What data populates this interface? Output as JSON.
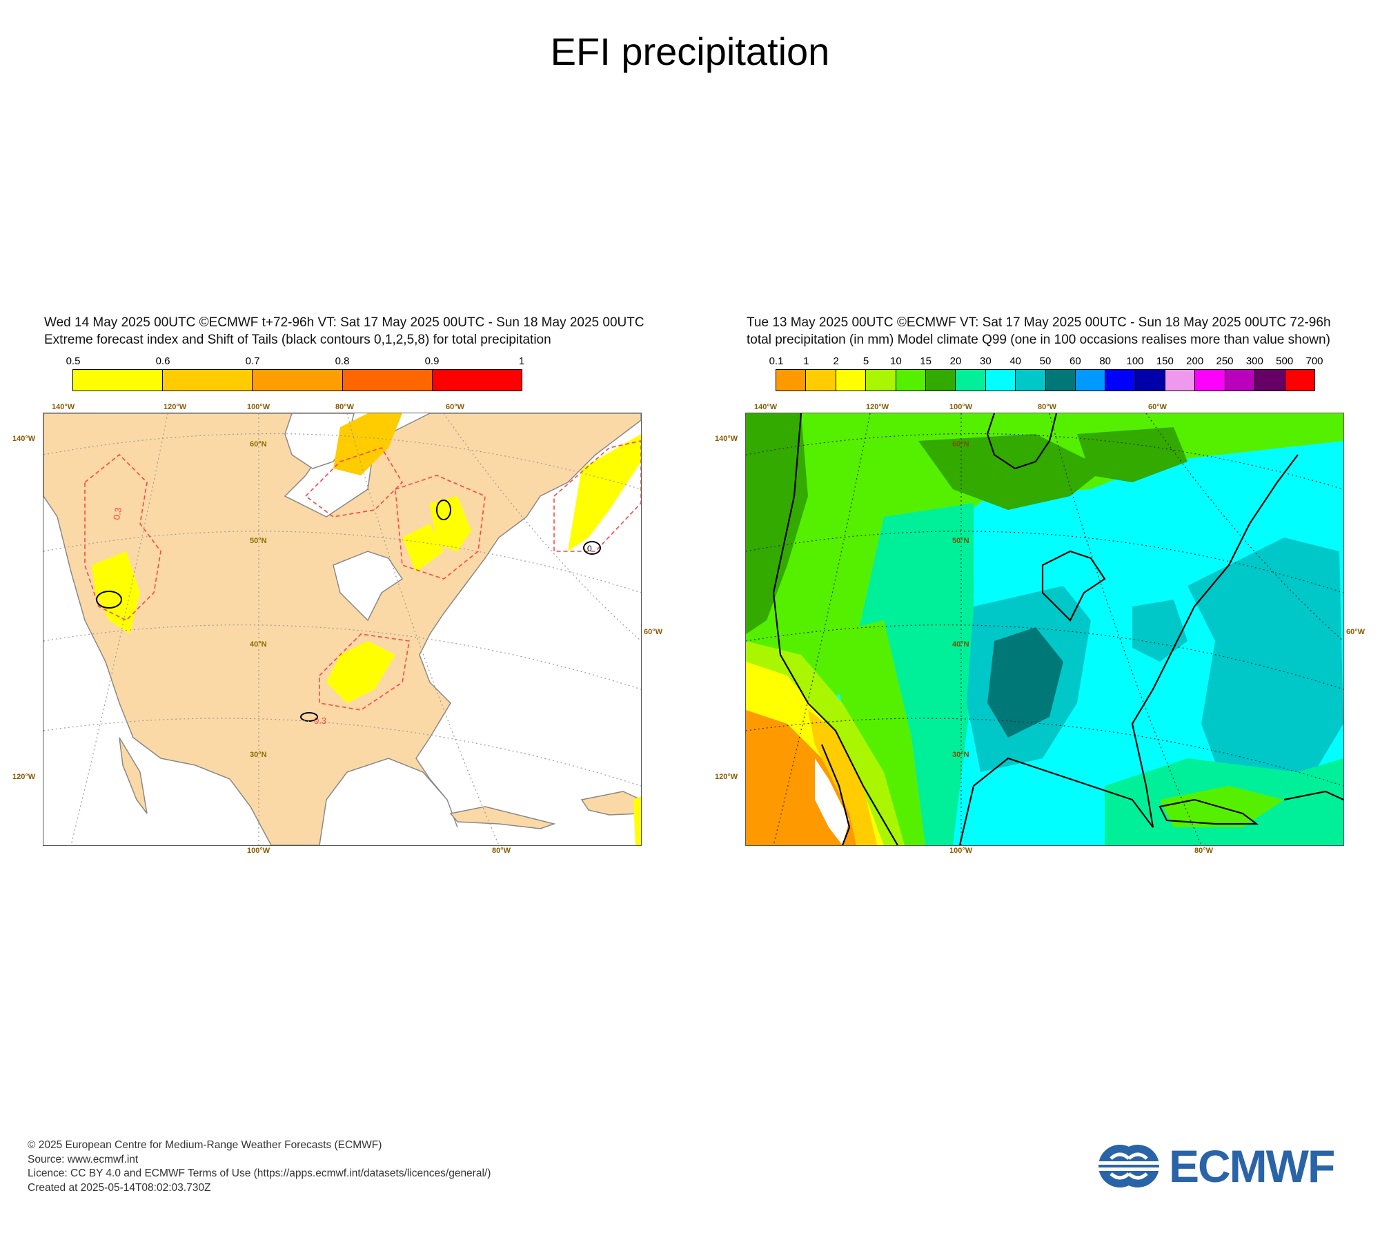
{
  "page_title": "EFI precipitation",
  "left_panel": {
    "header_line1": "Wed 14 May 2025 00UTC ©ECMWF t+72-96h  VT: Sat 17 May 2025 00UTC - Sun 18 May 2025 00UTC",
    "header_line2": "Extreme forecast index and Shift of Tails (black contours 0,1,2,5,8) for total precipitation",
    "colorbar_labels": [
      "0.5",
      "0.6",
      "0.7",
      "0.8",
      "0.9",
      "1"
    ],
    "colorbar_colors": [
      "#ffff00",
      "#ffcc00",
      "#ff9e00",
      "#ff6600",
      "#ff0000"
    ],
    "lon_labels_top": [
      "140°W",
      "120°W",
      "100°W",
      "80°W",
      "60°W"
    ],
    "lon_labels_bottom": [
      "100°W",
      "80°W"
    ],
    "lat_labels": [
      "60°N",
      "50°N",
      "40°N",
      "30°N"
    ],
    "side_labels_left": [
      "140°W",
      "120°W"
    ],
    "side_label_right": "60°W",
    "contour_label": "0.3",
    "contour_label_zero": "0",
    "land_color": "#fbd9a6",
    "sea_color": "#ffffff"
  },
  "right_panel": {
    "header_line1": "Tue 13 May 2025 00UTC ©ECMWF VT: Sat 17 May 2025 00UTC - Sun 18 May 2025 00UTC   72-96h",
    "header_line2": "total precipitation (in mm)  Model climate Q99 (one in 100 occasions realises more than value shown)",
    "colorbar_labels": [
      "0.1",
      "1",
      "2",
      "5",
      "10",
      "15",
      "20",
      "30",
      "40",
      "50",
      "60",
      "80",
      "100",
      "150",
      "200",
      "250",
      "300",
      "500",
      "700"
    ],
    "colorbar_colors": [
      "#ff9900",
      "#ffcc00",
      "#ffff00",
      "#aaf500",
      "#55f000",
      "#33aa00",
      "#00f09a",
      "#00ffff",
      "#00c8c8",
      "#007878",
      "#0099ff",
      "#0000ff",
      "#0000aa",
      "#ee99ee",
      "#ff00ff",
      "#bb00bb",
      "#660066",
      "#ff0000"
    ],
    "lon_labels_top": [
      "140°W",
      "120°W",
      "100°W",
      "80°W",
      "60°W"
    ],
    "lon_labels_bottom": [
      "100°W",
      "80°W"
    ],
    "lat_labels": [
      "60°N",
      "50°N",
      "40°N",
      "30°N"
    ],
    "side_labels_left": [
      "140°W",
      "120°W"
    ],
    "side_label_right": "60°W"
  },
  "footer": {
    "line1": "© 2025 European Centre for Medium-Range Weather Forecasts (ECMWF)",
    "line2": "Source: www.ecmwf.int",
    "line3": "Licence: CC BY 4.0 and ECMWF Terms of Use (https://apps.ecmwf.int/datasets/licences/general/)",
    "line4": "Created at 2025-05-14T08:02:03.730Z"
  },
  "logo": {
    "text": "ECMWF",
    "color": "#2a64a8"
  }
}
